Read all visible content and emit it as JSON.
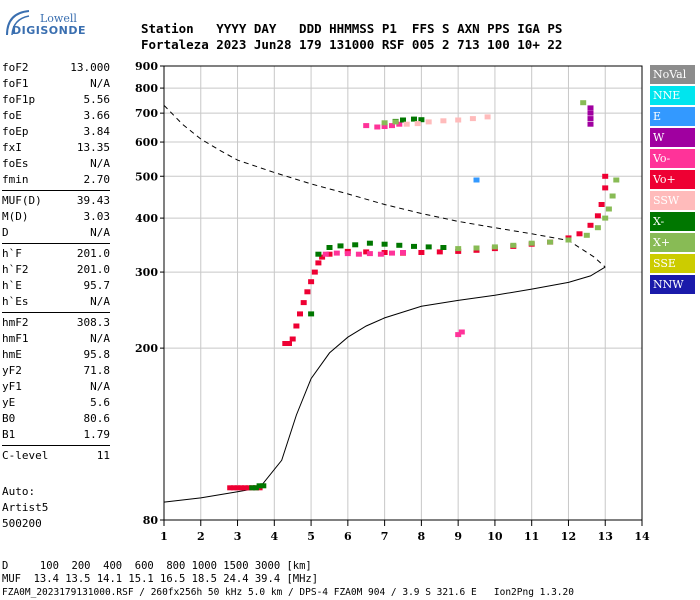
{
  "logo": {
    "top": "Lowell",
    "bottom": "DIGISONDE"
  },
  "header": {
    "line1": "Station   YYYY DAY   DDD HHMMSS P1  FFS S AXN PPS IGA PS",
    "line2": "Fortaleza 2023 Jun28 179 131000 RSF 005 2 713 100 10+ 22"
  },
  "params": [
    [
      [
        "foF2",
        "13.000"
      ],
      [
        "foF1",
        "N/A"
      ],
      [
        "foF1p",
        "5.56"
      ],
      [
        "foE",
        "3.66"
      ],
      [
        "foEp",
        "3.84"
      ],
      [
        "fxI",
        "13.35"
      ],
      [
        "foEs",
        "N/A"
      ],
      [
        "fmin",
        "2.70"
      ]
    ],
    [
      [
        "MUF(D)",
        "39.43"
      ],
      [
        "M(D)",
        "3.03"
      ],
      [
        "D",
        "N/A"
      ]
    ],
    [
      [
        "h`F",
        "201.0"
      ],
      [
        "h`F2",
        "201.0"
      ],
      [
        "h`E",
        "95.7"
      ],
      [
        "h`Es",
        "N/A"
      ]
    ],
    [
      [
        "hmF2",
        "308.3"
      ],
      [
        "hmF1",
        "N/A"
      ],
      [
        "hmE",
        "95.8"
      ],
      [
        "yF2",
        "71.8"
      ],
      [
        "yF1",
        "N/A"
      ],
      [
        "yE",
        "5.6"
      ],
      [
        "B0",
        "80.6"
      ],
      [
        "B1",
        "1.79"
      ]
    ],
    [
      [
        "C-level",
        "11"
      ]
    ]
  ],
  "auto": {
    "line1": "Auto:",
    "line2": "Artist5",
    "line3": "500200"
  },
  "legend": [
    {
      "label": "NoVal",
      "color": "#8c8c8c"
    },
    {
      "label": "NNE",
      "color": "#00e5ee"
    },
    {
      "label": "E",
      "color": "#3399ff"
    },
    {
      "label": "W",
      "color": "#a000a0"
    },
    {
      "label": "Vo-",
      "color": "#ff3399"
    },
    {
      "label": "Vo+",
      "color": "#ee0033"
    },
    {
      "label": "SSW",
      "color": "#ffbbbb"
    },
    {
      "label": "X-",
      "color": "#007700"
    },
    {
      "label": "X+",
      "color": "#88bb55"
    },
    {
      "label": "SSE",
      "color": "#cccc00"
    },
    {
      "label": "NNW",
      "color": "#1a1aaa"
    }
  ],
  "footer": {
    "line1": "D     100  200  400  600  800 1000 1500 3000 [km]",
    "line2": "MUF  13.4 13.5 14.1 15.1 16.5 18.5 24.4 39.4 [MHz]",
    "line3": "FZA0M_2023179131000.RSF / 260fx256h 50 kHz 5.0 km / DPS-4 FZA0M 904 / 3.9 S 321.6 E   Ion2Png 1.3.20"
  },
  "chart_data": {
    "type": "scatter",
    "xlabel": "",
    "ylabel": "",
    "xlim": [
      1,
      14
    ],
    "ylim": [
      80,
      900
    ],
    "x_ticks": [
      1,
      2,
      3,
      4,
      5,
      6,
      7,
      8,
      9,
      10,
      11,
      12,
      13,
      14
    ],
    "y_ticks": [
      80,
      200,
      300,
      400,
      500,
      600,
      700,
      800,
      900
    ],
    "y_scale": "log",
    "grid": true,
    "profile_solid": [
      [
        1,
        88
      ],
      [
        2,
        90
      ],
      [
        3,
        93
      ],
      [
        3.6,
        95
      ],
      [
        4.2,
        110
      ],
      [
        4.6,
        140
      ],
      [
        5,
        170
      ],
      [
        5.5,
        195
      ],
      [
        6,
        212
      ],
      [
        6.5,
        225
      ],
      [
        7,
        235
      ],
      [
        8,
        250
      ],
      [
        9,
        258
      ],
      [
        10,
        265
      ],
      [
        11,
        274
      ],
      [
        12,
        284
      ],
      [
        12.6,
        294
      ],
      [
        13,
        308
      ]
    ],
    "profile_dashed": [
      [
        1,
        730
      ],
      [
        1.5,
        660
      ],
      [
        2,
        610
      ],
      [
        2.5,
        575
      ],
      [
        3,
        545
      ],
      [
        4,
        510
      ],
      [
        5,
        480
      ],
      [
        6,
        455
      ],
      [
        7,
        430
      ],
      [
        8,
        410
      ],
      [
        9,
        393
      ],
      [
        10,
        380
      ],
      [
        11,
        368
      ],
      [
        12,
        355
      ],
      [
        12.7,
        325
      ],
      [
        13,
        308
      ]
    ],
    "traces": [
      {
        "name": "Vo+",
        "color": "#ee0033",
        "points": [
          [
            2.8,
            95
          ],
          [
            2.9,
            95
          ],
          [
            3.0,
            95
          ],
          [
            3.1,
            95
          ],
          [
            3.2,
            95
          ],
          [
            3.3,
            95
          ],
          [
            3.4,
            95
          ],
          [
            3.5,
            95
          ],
          [
            3.6,
            95
          ],
          [
            4.3,
            205
          ],
          [
            4.4,
            205
          ],
          [
            4.5,
            210
          ],
          [
            4.6,
            225
          ],
          [
            4.7,
            240
          ],
          [
            4.8,
            255
          ],
          [
            4.9,
            270
          ],
          [
            5.0,
            285
          ],
          [
            5.1,
            300
          ],
          [
            5.2,
            315
          ],
          [
            5.3,
            325
          ],
          [
            5.5,
            330
          ],
          [
            6.0,
            335
          ],
          [
            6.5,
            334
          ],
          [
            7.0,
            333
          ],
          [
            7.5,
            332
          ],
          [
            8.0,
            333
          ],
          [
            8.5,
            334
          ],
          [
            9.0,
            335
          ],
          [
            9.5,
            337
          ],
          [
            10.0,
            340
          ],
          [
            10.5,
            344
          ],
          [
            11.0,
            348
          ],
          [
            11.5,
            352
          ],
          [
            12.0,
            360
          ],
          [
            12.3,
            368
          ],
          [
            12.6,
            385
          ],
          [
            12.8,
            405
          ],
          [
            12.9,
            430
          ],
          [
            13.0,
            470
          ],
          [
            13.0,
            500
          ]
        ]
      },
      {
        "name": "Vo-",
        "color": "#ff3399",
        "points": [
          [
            5.4,
            330
          ],
          [
            5.7,
            332
          ],
          [
            6.0,
            331
          ],
          [
            6.3,
            330
          ],
          [
            6.6,
            331
          ],
          [
            6.9,
            330
          ],
          [
            7.2,
            332
          ],
          [
            7.5,
            333
          ],
          [
            6.5,
            655
          ],
          [
            6.8,
            650
          ],
          [
            7.0,
            652
          ],
          [
            7.2,
            655
          ],
          [
            7.4,
            660
          ],
          [
            9.0,
            215
          ],
          [
            9.1,
            218
          ]
        ]
      },
      {
        "name": "X-",
        "color": "#007700",
        "points": [
          [
            3.4,
            95
          ],
          [
            3.5,
            95
          ],
          [
            3.6,
            96
          ],
          [
            3.7,
            96
          ],
          [
            5.2,
            330
          ],
          [
            5.5,
            342
          ],
          [
            5.8,
            345
          ],
          [
            6.2,
            347
          ],
          [
            6.6,
            350
          ],
          [
            7.0,
            348
          ],
          [
            7.4,
            346
          ],
          [
            7.8,
            344
          ],
          [
            8.2,
            343
          ],
          [
            8.6,
            342
          ],
          [
            7.3,
            670
          ],
          [
            7.5,
            675
          ],
          [
            7.8,
            678
          ],
          [
            8.0,
            676
          ],
          [
            5.0,
            240
          ]
        ]
      },
      {
        "name": "X+",
        "color": "#88bb55",
        "points": [
          [
            9.0,
            340
          ],
          [
            9.5,
            341
          ],
          [
            10.0,
            343
          ],
          [
            10.5,
            346
          ],
          [
            11.0,
            350
          ],
          [
            11.5,
            352
          ],
          [
            12.0,
            356
          ],
          [
            12.5,
            365
          ],
          [
            12.8,
            380
          ],
          [
            13.0,
            400
          ],
          [
            13.1,
            420
          ],
          [
            13.2,
            450
          ],
          [
            13.3,
            490
          ],
          [
            7.0,
            665
          ],
          [
            7.3,
            668
          ],
          [
            12.4,
            740
          ]
        ]
      },
      {
        "name": "SSW",
        "color": "#ffbbbb",
        "points": [
          [
            7.6,
            660
          ],
          [
            7.9,
            662
          ],
          [
            8.2,
            668
          ],
          [
            8.6,
            672
          ],
          [
            9.0,
            675
          ],
          [
            9.4,
            680
          ],
          [
            9.8,
            686
          ]
        ]
      },
      {
        "name": "W",
        "color": "#a000a0",
        "points": [
          [
            12.6,
            660
          ],
          [
            12.6,
            680
          ],
          [
            12.6,
            700
          ],
          [
            12.6,
            720
          ]
        ]
      },
      {
        "name": "E",
        "color": "#3399ff",
        "points": [
          [
            9.5,
            490
          ]
        ]
      }
    ]
  }
}
